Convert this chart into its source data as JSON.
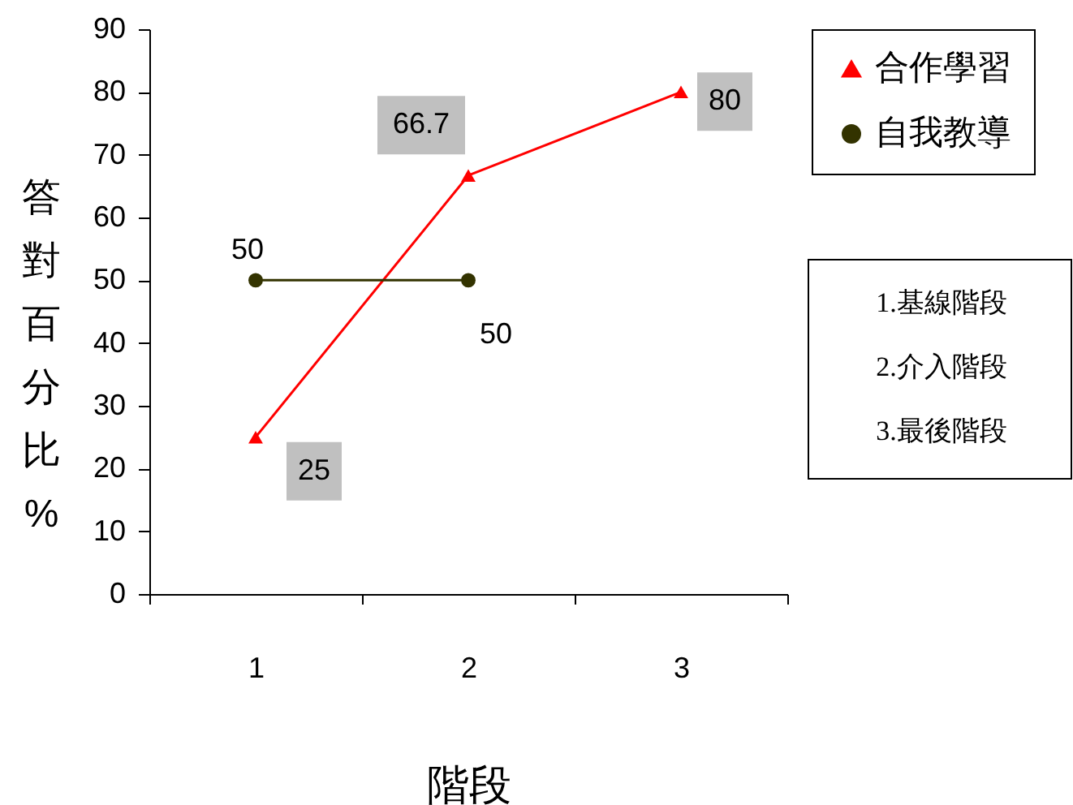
{
  "chart_data": {
    "type": "line",
    "xlabel": "階段",
    "ylabel": "答對百分比%",
    "categories": [
      "1",
      "2",
      "3"
    ],
    "series": [
      {
        "name": "合作學習",
        "color": "#ff0000",
        "marker": "triangle",
        "values": [
          25,
          66.7,
          80
        ]
      },
      {
        "name": "自我教導",
        "color": "#333300",
        "marker": "circle",
        "values": [
          50,
          50,
          null
        ]
      }
    ],
    "ylim": [
      0,
      90
    ],
    "yticks": [
      0,
      10,
      20,
      30,
      40,
      50,
      60,
      70,
      80,
      90
    ],
    "data_labels": true,
    "legend": "right",
    "annotations": [
      "1.基線階段",
      "2.介入階段",
      "3.最後階段"
    ]
  }
}
